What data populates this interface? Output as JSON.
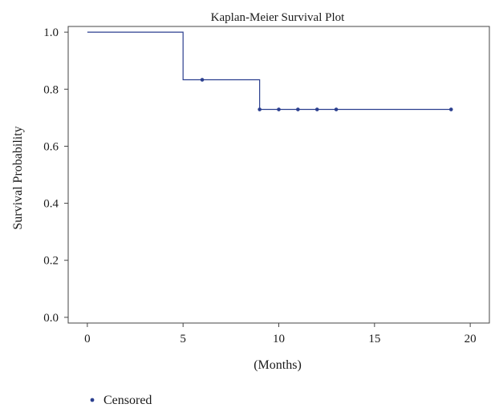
{
  "chart_data": {
    "type": "line",
    "title": "Kaplan-Meier Survival Plot",
    "xlabel": "(Months)",
    "ylabel": "Survival Probability",
    "xlim": [
      -1,
      21
    ],
    "ylim": [
      -0.02,
      1.02
    ],
    "xticks": [
      0,
      5,
      10,
      15,
      20
    ],
    "xtick_labels": [
      "0",
      "5",
      "10",
      "15",
      "20"
    ],
    "yticks": [
      0.0,
      0.2,
      0.4,
      0.6,
      0.8,
      1.0
    ],
    "ytick_labels": [
      "0.0",
      "0.2",
      "0.4",
      "0.6",
      "0.8",
      "1.0"
    ],
    "grid": false,
    "legend_position": "bottom-left",
    "legend": [
      {
        "label": "Censored",
        "marker": "dot"
      }
    ],
    "series": [
      {
        "style": "step",
        "color": "#2b3f8f",
        "x": [
          0,
          5,
          5,
          9,
          9,
          19
        ],
        "y": [
          1.0,
          1.0,
          0.833,
          0.833,
          0.729,
          0.729
        ]
      }
    ],
    "censored": {
      "color": "#2b3f8f",
      "x": [
        6,
        9,
        10,
        11,
        12,
        13,
        19
      ],
      "y": [
        0.833,
        0.729,
        0.729,
        0.729,
        0.729,
        0.729,
        0.729
      ]
    }
  }
}
